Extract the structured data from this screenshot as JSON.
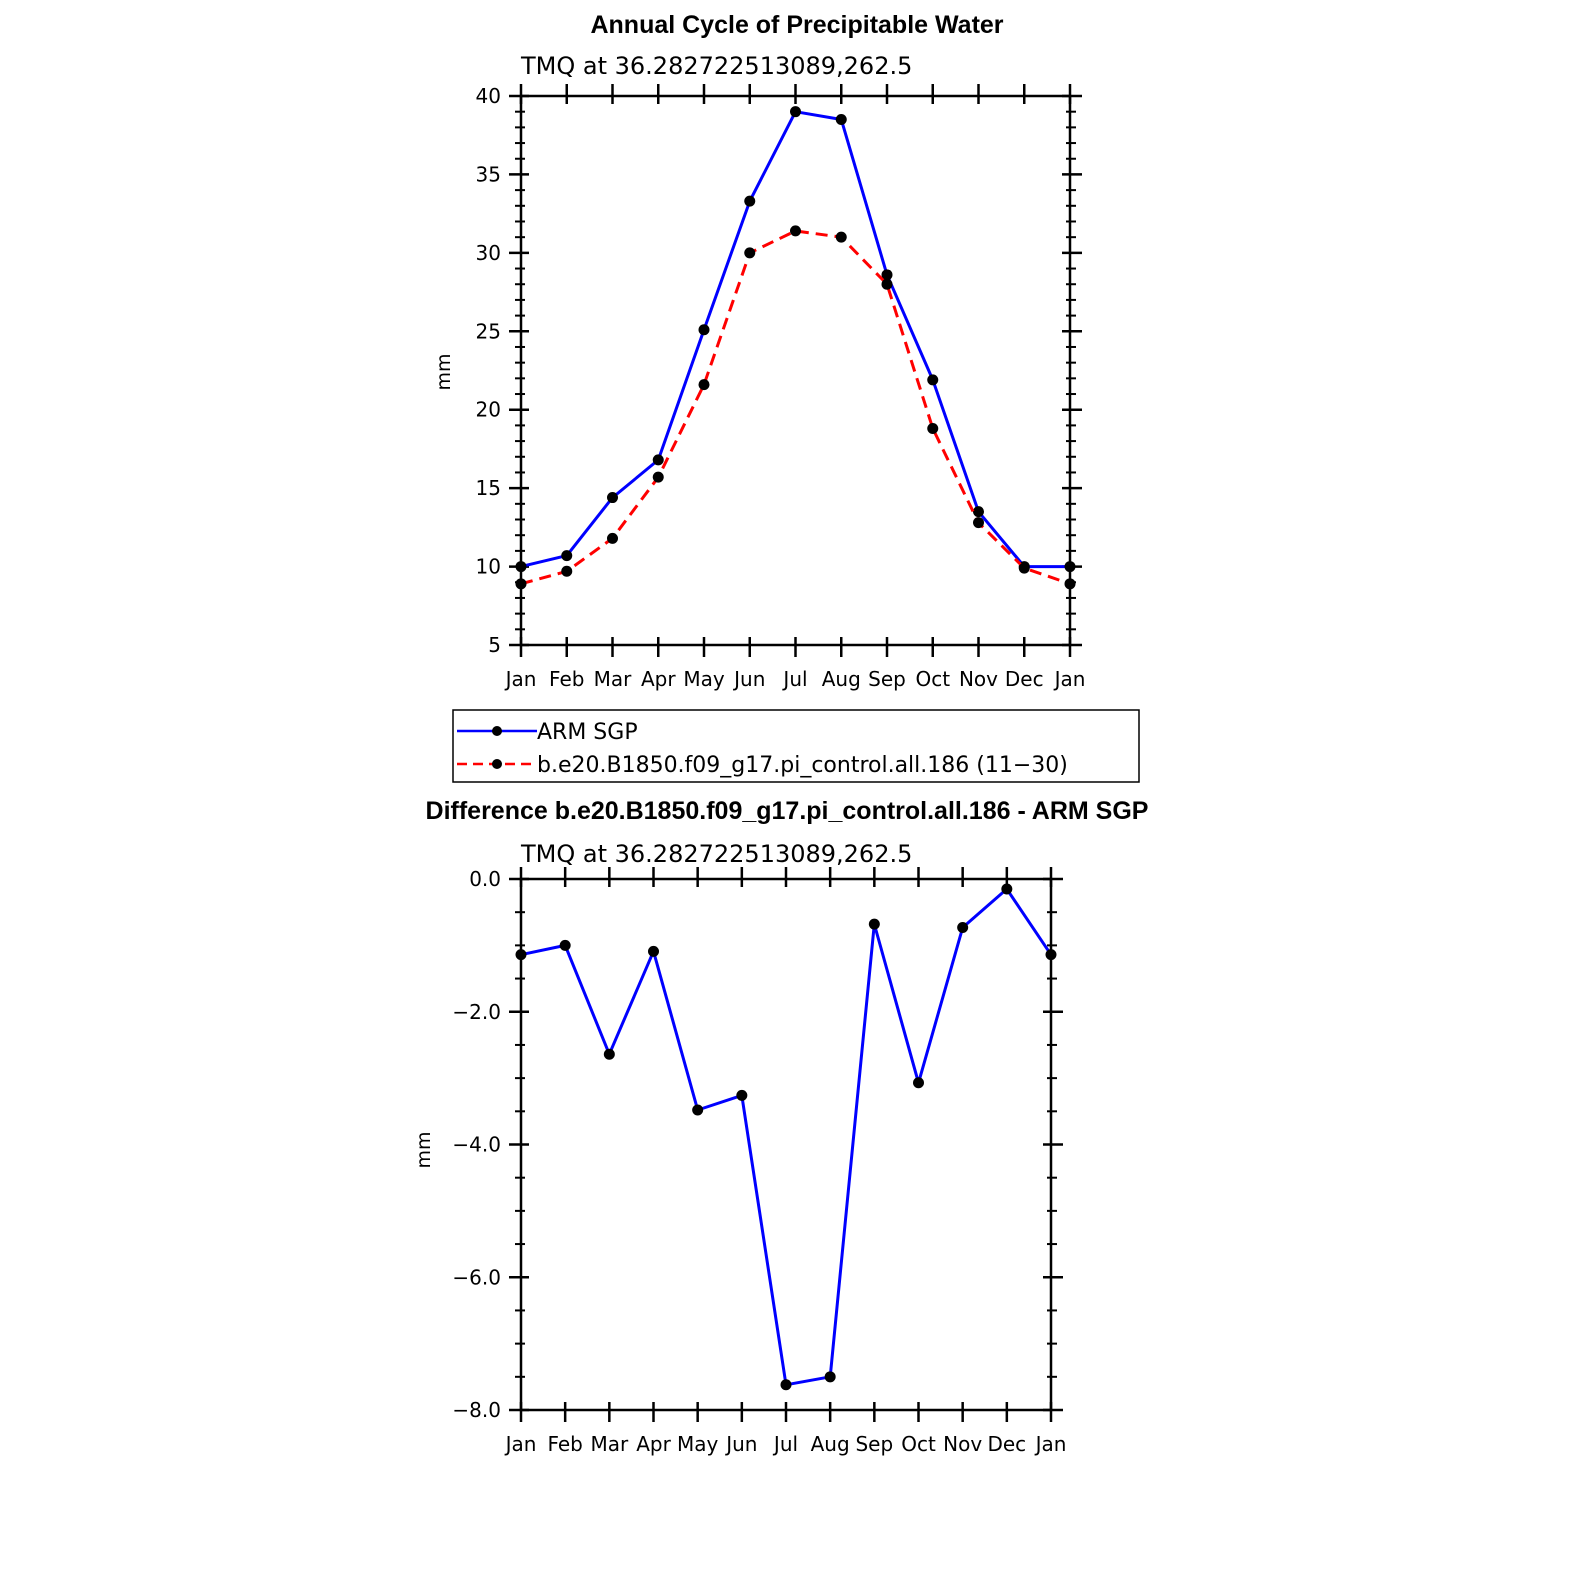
{
  "chart_data": [
    {
      "type": "line",
      "title": "Annual Cycle of Precipitable Water",
      "subtitle": "TMQ at 36.282722513089,262.5",
      "xlabel": "",
      "ylabel": "mm",
      "categories": [
        "Jan",
        "Feb",
        "Mar",
        "Apr",
        "May",
        "Jun",
        "Jul",
        "Aug",
        "Sep",
        "Oct",
        "Nov",
        "Dec",
        "Jan"
      ],
      "ylim": [
        5,
        40
      ],
      "yticks": [
        5,
        10,
        15,
        20,
        25,
        30,
        35,
        40
      ],
      "ytick_labels": [
        "5",
        "10",
        "15",
        "20",
        "25",
        "30",
        "35",
        "40"
      ],
      "series": [
        {
          "name": "ARM SGP",
          "color": "#0000ff",
          "dash": "solid",
          "values": [
            10.0,
            10.7,
            14.4,
            16.8,
            25.1,
            33.3,
            39.0,
            38.5,
            28.6,
            21.9,
            13.5,
            10.0,
            10.0
          ]
        },
        {
          "name": "b.e20.B1850.f09_g17.pi_control.all.186 (11−30)",
          "color": "#ff0000",
          "dash": "dashed",
          "values": [
            8.9,
            9.7,
            11.8,
            15.7,
            21.6,
            30.0,
            31.4,
            31.0,
            28.0,
            18.8,
            12.8,
            9.9,
            8.9
          ]
        }
      ],
      "legend": "below"
    },
    {
      "type": "line",
      "title": "Difference b.e20.B1850.f09_g17.pi_control.all.186 - ARM SGP",
      "subtitle": "TMQ at 36.282722513089,262.5",
      "xlabel": "",
      "ylabel": "mm",
      "categories": [
        "Jan",
        "Feb",
        "Mar",
        "Apr",
        "May",
        "Jun",
        "Jul",
        "Aug",
        "Sep",
        "Oct",
        "Nov",
        "Dec",
        "Jan"
      ],
      "ylim": [
        -8.0,
        0.0
      ],
      "yticks": [
        -8,
        -6,
        -4,
        -2,
        0
      ],
      "ytick_labels": [
        "−8.0",
        "−6.0",
        "−4.0",
        "−2.0",
        "0.0"
      ],
      "series": [
        {
          "name": "Difference",
          "color": "#0000ff",
          "dash": "solid",
          "values": [
            -1.14,
            -1.0,
            -2.64,
            -1.09,
            -3.48,
            -3.26,
            -7.62,
            -7.5,
            -0.68,
            -3.07,
            -0.73,
            -0.15,
            -1.14
          ]
        }
      ]
    }
  ]
}
